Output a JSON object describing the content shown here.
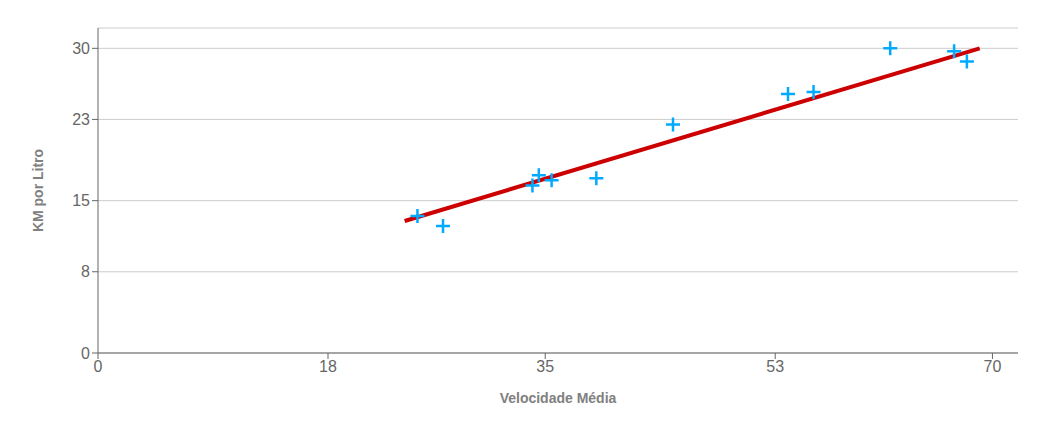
{
  "chart_data": {
    "type": "scatter",
    "xlabel": "Velocidade Média",
    "ylabel": "KM por Litro",
    "xlim": [
      0,
      72
    ],
    "ylim": [
      0,
      32
    ],
    "xticks": [
      0,
      18,
      35,
      53,
      70
    ],
    "yticks": [
      0,
      8,
      15,
      23,
      30
    ],
    "grid": "y",
    "series": [
      {
        "type": "line",
        "color": "#CC0000",
        "x": [
          24,
          69
        ],
        "values": [
          13.0,
          30.0
        ]
      },
      {
        "type": "scatter",
        "color": "#00AAFF",
        "marker": "plus",
        "x": [
          25,
          27,
          34,
          34.5,
          35.5,
          39,
          45,
          54,
          56,
          62,
          67,
          68
        ],
        "values": [
          13.5,
          12.5,
          16.5,
          17.5,
          17.0,
          17.2,
          22.5,
          25.5,
          25.7,
          30.0,
          29.7,
          28.7
        ]
      }
    ]
  }
}
